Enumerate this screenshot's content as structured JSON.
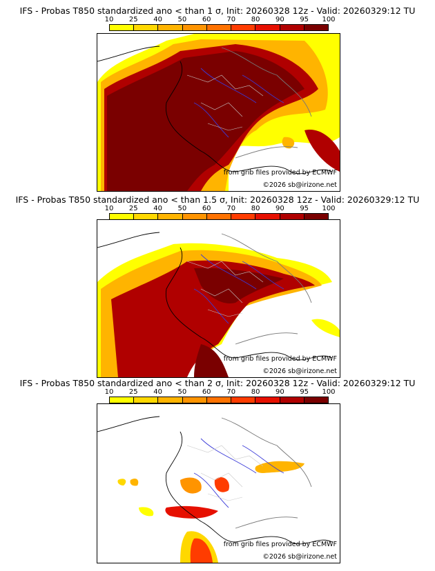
{
  "scale": {
    "ticks": [
      "10",
      "25",
      "40",
      "50",
      "60",
      "70",
      "80",
      "90",
      "95",
      "100"
    ],
    "colors": [
      "#ffff00",
      "#ffd800",
      "#ffb400",
      "#ff9400",
      "#ff7200",
      "#ff3c00",
      "#e61000",
      "#b00000",
      "#7a0000"
    ]
  },
  "colors": {
    "border": "#777777",
    "river": "#3a3ad8",
    "coast": "#000000",
    "admin": "#c8c8c8"
  },
  "maps": [
    {
      "title": "IFS - Probas T850  standardized ano < than 1 σ, Init: 20260328 12z - Valid: 20260329:12 TU",
      "source": "from grib files provided by ECMWF",
      "copyright": "©2026 sb@irizone.net"
    },
    {
      "title": "IFS - Probas T850  standardized ano < than 1.5 σ, Init: 20260328 12z - Valid: 20260329:12 TU",
      "source": "from grib files provided by ECMWF",
      "copyright": "©2026 sb@irizone.net"
    },
    {
      "title": "IFS - Probas T850  standardized ano < than 2 σ, Init: 20260328 12z - Valid: 20260329:12 TU",
      "source": "from grib files provided by ECMWF",
      "copyright": "©2026 sb@irizone.net"
    }
  ]
}
